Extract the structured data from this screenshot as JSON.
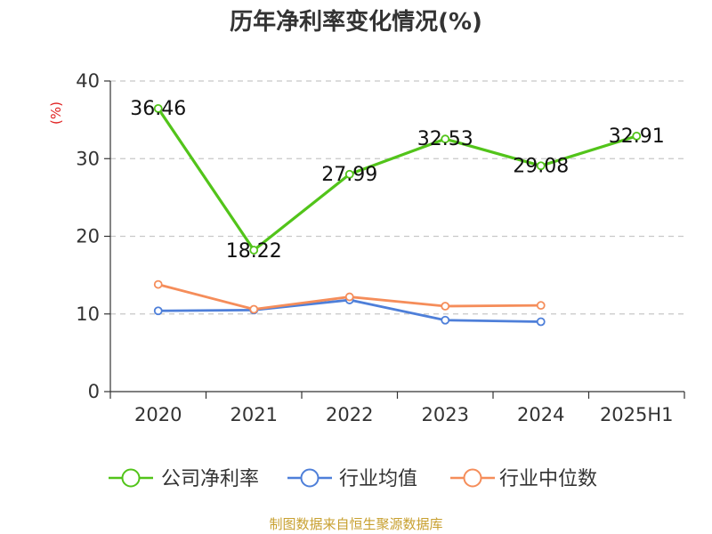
{
  "chart_data": {
    "type": "line",
    "title": "历年净利率变化情况(%)",
    "ylabel": "(%)",
    "categories": [
      "2020",
      "2021",
      "2022",
      "2023",
      "2024",
      "2025H1"
    ],
    "ylim": [
      0,
      40
    ],
    "yticks": [
      0,
      10,
      20,
      30,
      40
    ],
    "grid": true,
    "legend_position": "bottom",
    "series": [
      {
        "name": "公司净利率",
        "color": "#52c41a",
        "values": [
          36.46,
          18.22,
          27.99,
          32.53,
          29.08,
          32.91
        ],
        "labels": [
          "36.46",
          "18.22",
          "27.99",
          "32.53",
          "29.08",
          "32.91"
        ]
      },
      {
        "name": "行业均值",
        "color": "#4e7fd9",
        "values": [
          10.4,
          10.5,
          11.8,
          9.2,
          9.0,
          null
        ]
      },
      {
        "name": "行业中位数",
        "color": "#f58d5a",
        "values": [
          13.8,
          10.6,
          12.2,
          11.0,
          11.1,
          null
        ]
      }
    ]
  },
  "footer": {
    "source": "制图数据来自恒生聚源数据库"
  }
}
